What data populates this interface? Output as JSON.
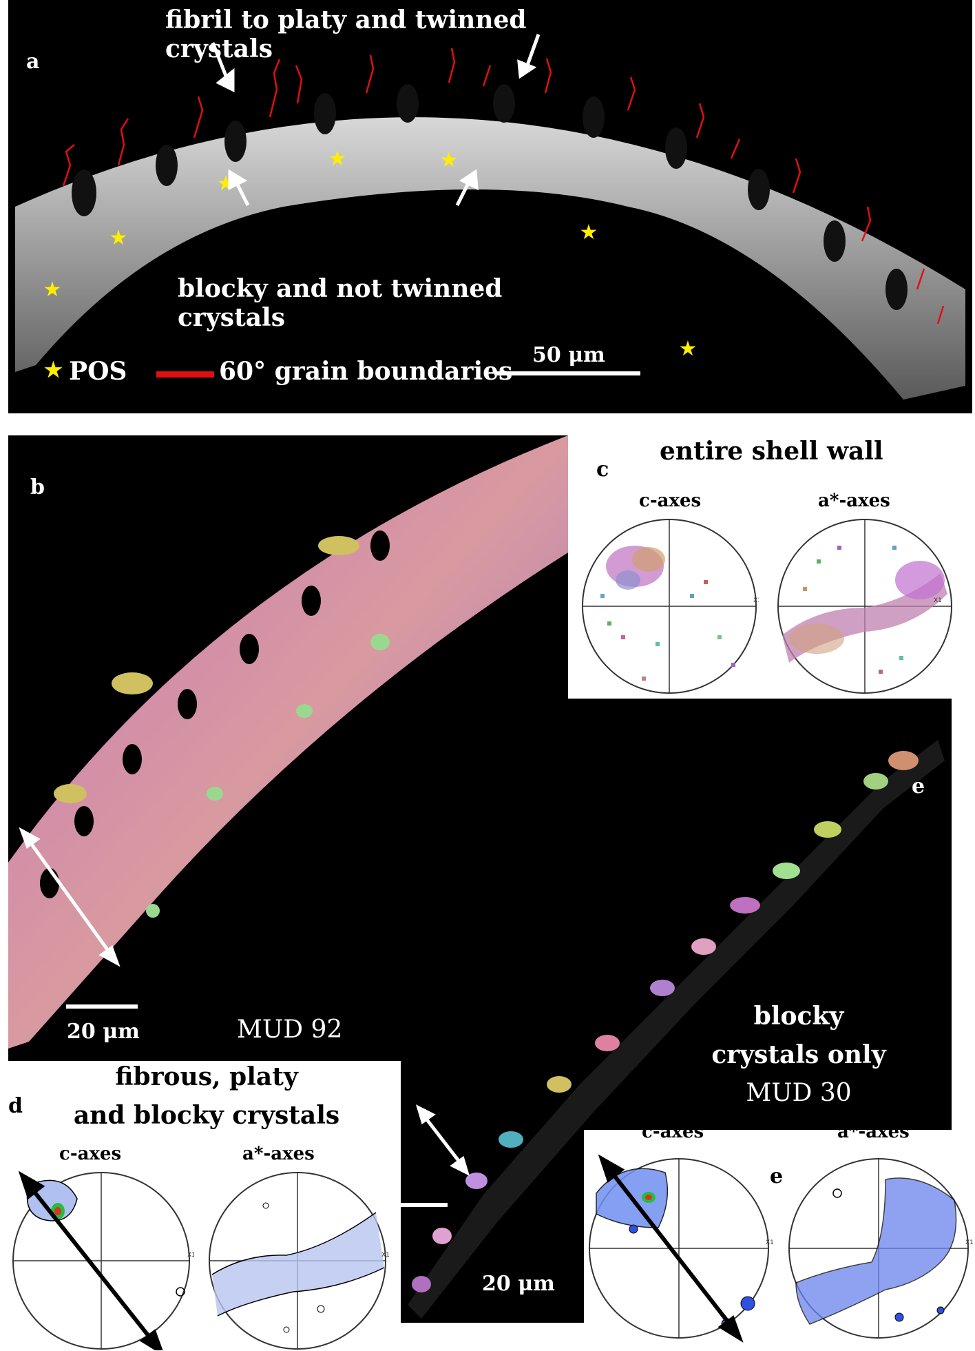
{
  "panels": {
    "a": {
      "label": "a",
      "annotation_top": "fibril to platy and twinned crystals",
      "annotation_bottom": "blocky and not twinned crystals",
      "legend_star": "POS",
      "legend_line": "60° grain boundaries",
      "scale_bar": "50 μm",
      "colors": {
        "boundary": "#e01010",
        "star": "#ffee00"
      }
    },
    "b": {
      "label": "b",
      "scale_bar": "20 μm",
      "sample": "MUD 92"
    },
    "c": {
      "label": "c",
      "title": "entire shell wall",
      "pf_left": "c-axes",
      "pf_right": "a*-axes",
      "axis_mark": "X1"
    },
    "d": {
      "label": "d",
      "title_line1": "fibrous, platy",
      "title_line2": "and blocky crystals",
      "pf_left": "c-axes",
      "pf_right": "a*-axes",
      "axis_mark": "X1"
    },
    "e": {
      "label_top": "e",
      "label_pf": "e",
      "title_line1": "blocky",
      "title_line2": "crystals only",
      "sample": "MUD 30",
      "scale_bar": "20 μm",
      "pf_left": "c-axes",
      "pf_right": "a*-axes",
      "axis_mark": "X1"
    }
  }
}
